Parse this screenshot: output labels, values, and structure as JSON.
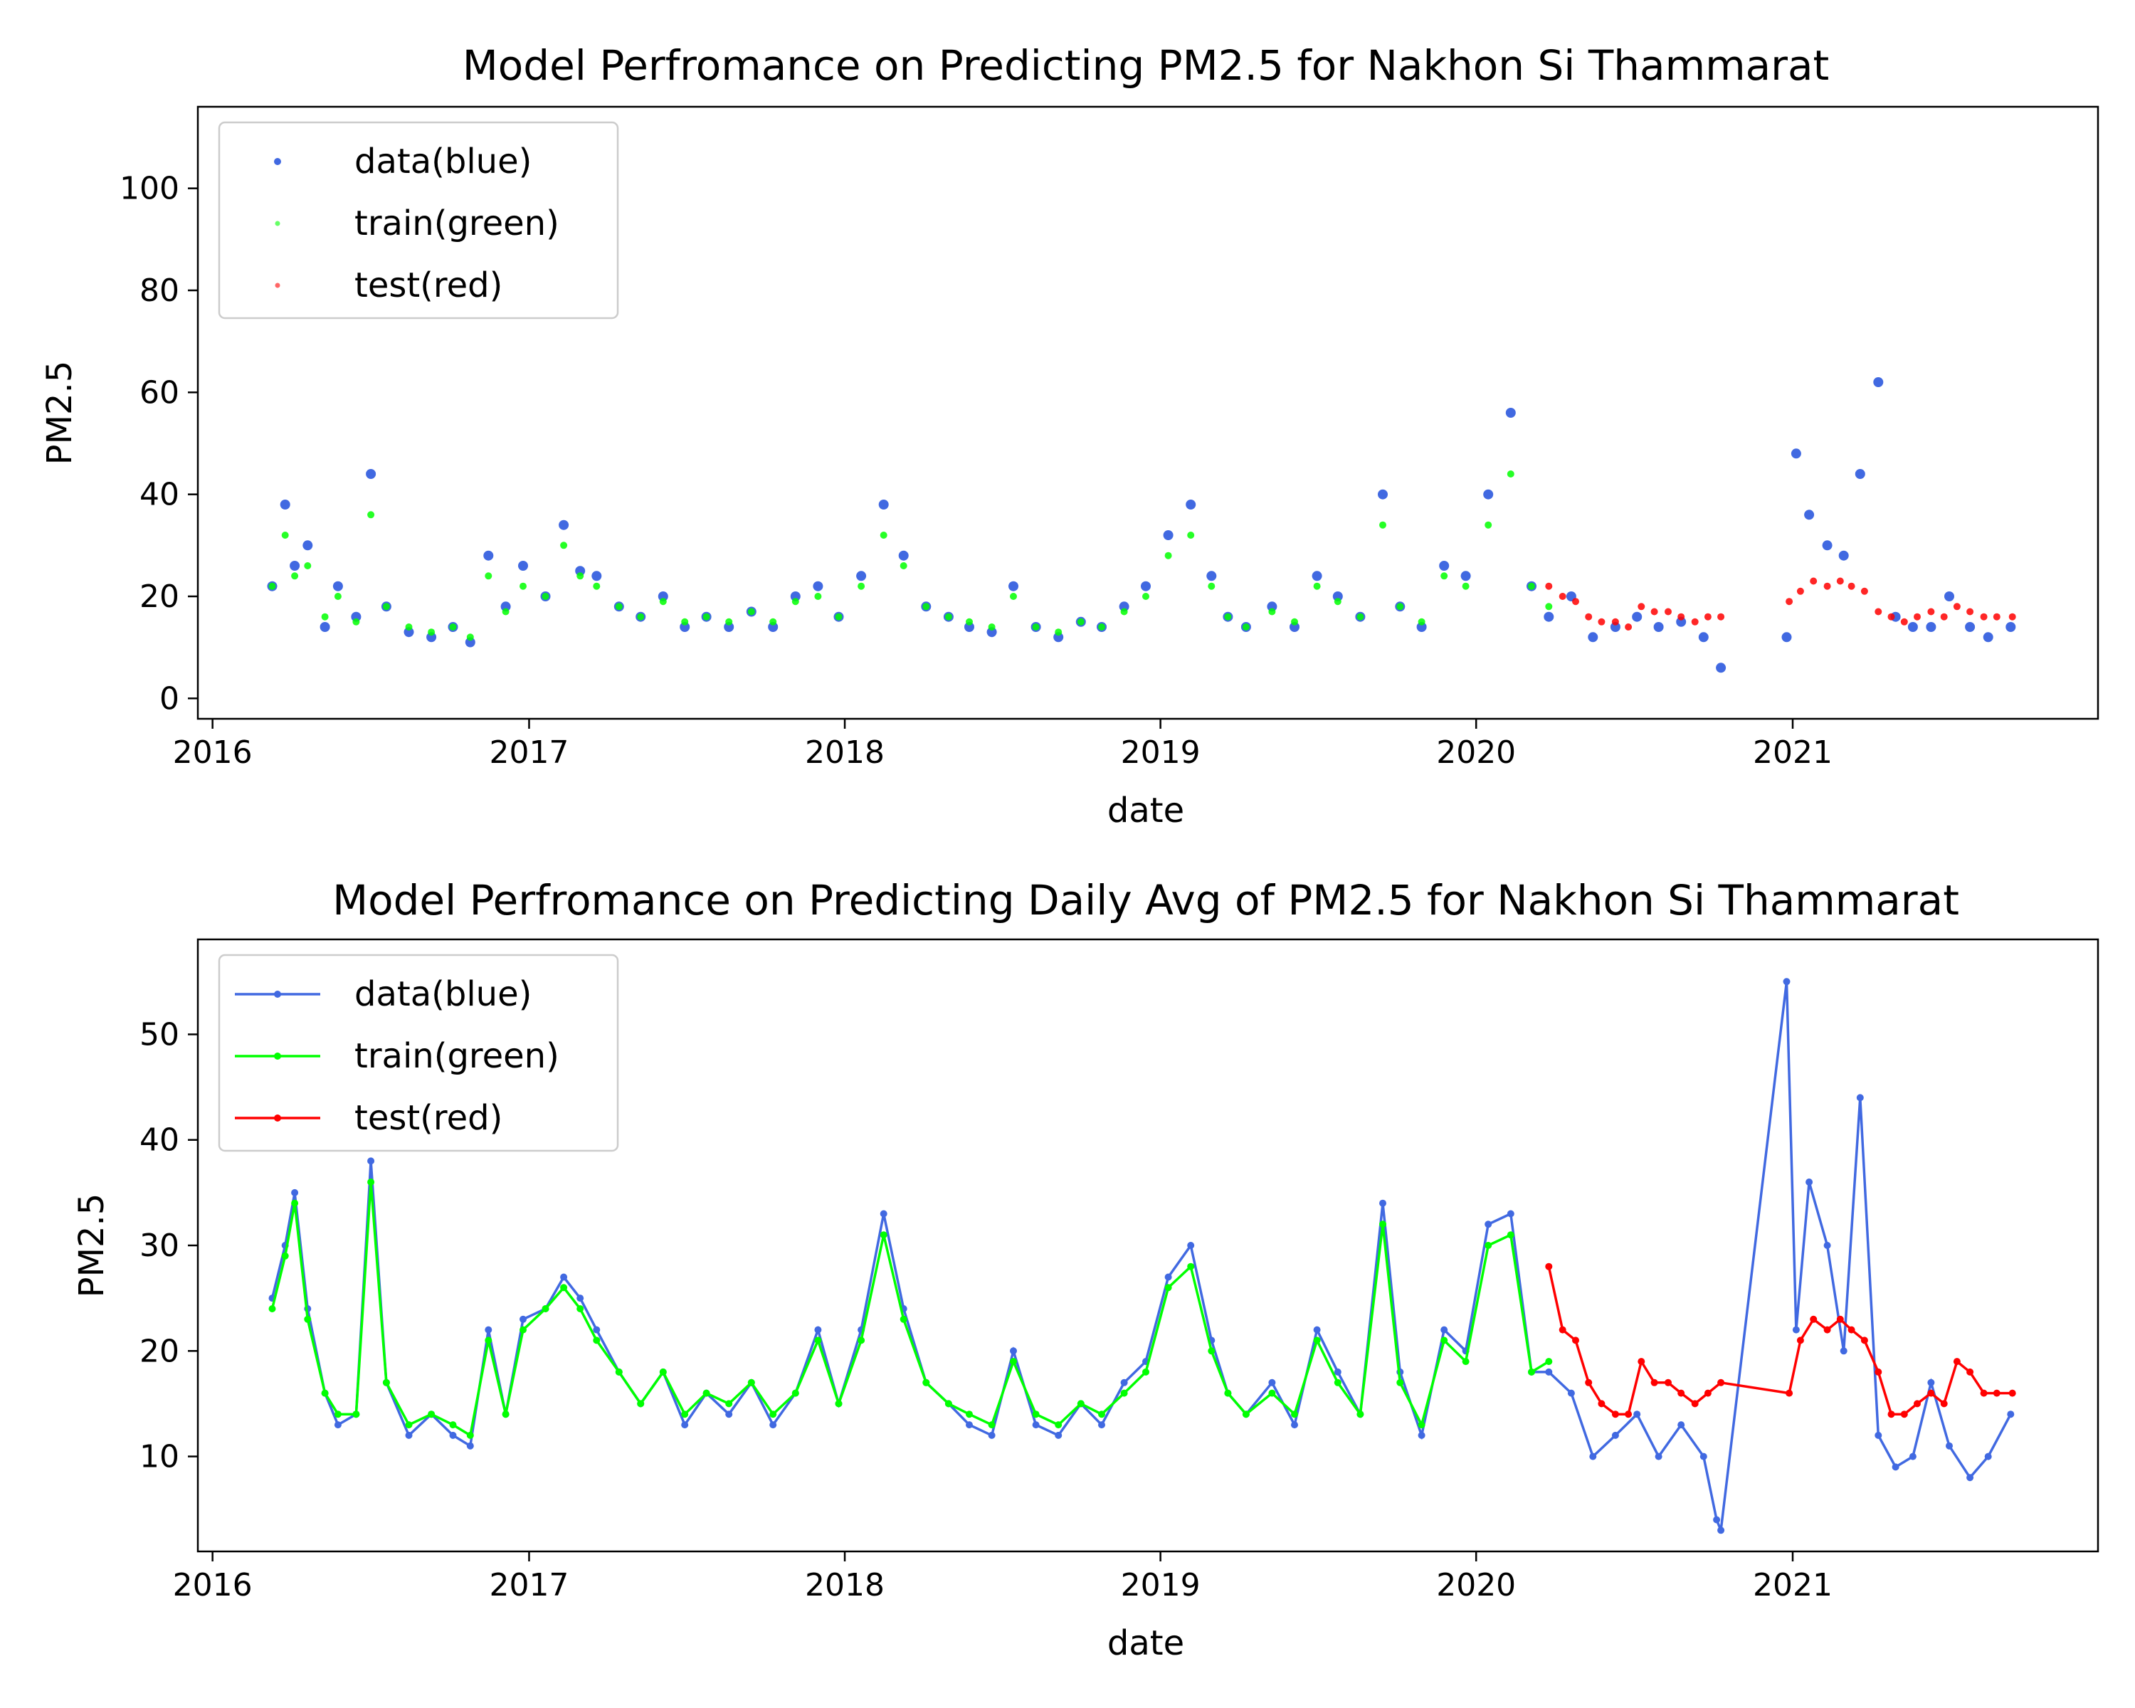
{
  "chart_data": [
    {
      "type": "scatter",
      "title": "Model Perfromance on Predicting PM2.5 for Nakhon Si Thammarat",
      "xlabel": "date",
      "ylabel": "PM2.5",
      "xlim": [
        "2015-12-15",
        "2021-12-20"
      ],
      "ylim": [
        -4,
        116
      ],
      "x_ticks": [
        "2016",
        "2017",
        "2018",
        "2019",
        "2020",
        "2021"
      ],
      "y_ticks": [
        0,
        20,
        40,
        60,
        80,
        100
      ],
      "legend": {
        "placement": "upper-left",
        "entries": [
          "data(blue)",
          "train(green)",
          "test(red)"
        ]
      },
      "colors": {
        "data": "#4169e1",
        "train": "#00ff00",
        "test": "#ff0000"
      },
      "series": [
        {
          "name": "data(blue)",
          "x": [
            "2016-03-10",
            "2016-03-25",
            "2016-04-05",
            "2016-04-20",
            "2016-05-10",
            "2016-05-25",
            "2016-06-15",
            "2016-07-02",
            "2016-07-20",
            "2016-08-15",
            "2016-09-10",
            "2016-10-05",
            "2016-10-25",
            "2016-11-15",
            "2016-12-05",
            "2016-12-25",
            "2017-01-20",
            "2017-02-10",
            "2017-03-01",
            "2017-03-20",
            "2017-04-15",
            "2017-05-10",
            "2017-06-05",
            "2017-06-30",
            "2017-07-25",
            "2017-08-20",
            "2017-09-15",
            "2017-10-10",
            "2017-11-05",
            "2017-12-01",
            "2017-12-25",
            "2018-01-20",
            "2018-02-15",
            "2018-03-10",
            "2018-04-05",
            "2018-05-01",
            "2018-05-25",
            "2018-06-20",
            "2018-07-15",
            "2018-08-10",
            "2018-09-05",
            "2018-10-01",
            "2018-10-25",
            "2018-11-20",
            "2018-12-15",
            "2019-01-10",
            "2019-02-05",
            "2019-03-01",
            "2019-03-20",
            "2019-04-10",
            "2019-05-10",
            "2019-06-05",
            "2019-07-01",
            "2019-07-25",
            "2019-08-20",
            "2019-09-15",
            "2019-10-05",
            "2019-10-30",
            "2019-11-25",
            "2019-12-20",
            "2020-01-15",
            "2020-02-10",
            "2020-03-05",
            "2020-03-25",
            "2020-04-20",
            "2020-05-15",
            "2020-06-10",
            "2020-07-05",
            "2020-07-30",
            "2020-08-25",
            "2020-09-20",
            "2020-10-10",
            "2020-12-25",
            "2021-01-05",
            "2021-01-20",
            "2021-02-10",
            "2021-03-01",
            "2021-03-20",
            "2021-04-10",
            "2021-04-30",
            "2021-05-20",
            "2021-06-10",
            "2021-07-01",
            "2021-07-25",
            "2021-08-15",
            "2021-09-10"
          ],
          "y": [
            22,
            38,
            26,
            30,
            14,
            22,
            16,
            44,
            18,
            13,
            12,
            14,
            11,
            28,
            18,
            26,
            20,
            34,
            25,
            24,
            18,
            16,
            20,
            14,
            16,
            14,
            17,
            14,
            20,
            22,
            16,
            24,
            38,
            28,
            18,
            16,
            14,
            13,
            22,
            14,
            12,
            15,
            14,
            18,
            22,
            32,
            38,
            24,
            16,
            14,
            18,
            14,
            24,
            20,
            16,
            40,
            18,
            14,
            26,
            24,
            40,
            56,
            22,
            16,
            20,
            12,
            14,
            16,
            14,
            15,
            12,
            6,
            12,
            48,
            36,
            30,
            28,
            44,
            62,
            16,
            14,
            14,
            20,
            14,
            12,
            14
          ]
        },
        {
          "name": "train(green)",
          "x": [
            "2016-03-10",
            "2016-03-25",
            "2016-04-05",
            "2016-04-20",
            "2016-05-10",
            "2016-05-25",
            "2016-06-15",
            "2016-07-02",
            "2016-07-20",
            "2016-08-15",
            "2016-09-10",
            "2016-10-05",
            "2016-10-25",
            "2016-11-15",
            "2016-12-05",
            "2016-12-25",
            "2017-01-20",
            "2017-02-10",
            "2017-03-01",
            "2017-03-20",
            "2017-04-15",
            "2017-05-10",
            "2017-06-05",
            "2017-06-30",
            "2017-07-25",
            "2017-08-20",
            "2017-09-15",
            "2017-10-10",
            "2017-11-05",
            "2017-12-01",
            "2017-12-25",
            "2018-01-20",
            "2018-02-15",
            "2018-03-10",
            "2018-04-05",
            "2018-05-01",
            "2018-05-25",
            "2018-06-20",
            "2018-07-15",
            "2018-08-10",
            "2018-09-05",
            "2018-10-01",
            "2018-10-25",
            "2018-11-20",
            "2018-12-15",
            "2019-01-10",
            "2019-02-05",
            "2019-03-01",
            "2019-03-20",
            "2019-04-10",
            "2019-05-10",
            "2019-06-05",
            "2019-07-01",
            "2019-07-25",
            "2019-08-20",
            "2019-09-15",
            "2019-10-05",
            "2019-10-30",
            "2019-11-25",
            "2019-12-20",
            "2020-01-15",
            "2020-02-10",
            "2020-03-05",
            "2020-03-25"
          ],
          "y": [
            22,
            32,
            24,
            26,
            16,
            20,
            15,
            36,
            18,
            14,
            13,
            14,
            12,
            24,
            17,
            22,
            20,
            30,
            24,
            22,
            18,
            16,
            19,
            15,
            16,
            15,
            17,
            15,
            19,
            20,
            16,
            22,
            32,
            26,
            18,
            16,
            15,
            14,
            20,
            14,
            13,
            15,
            14,
            17,
            20,
            28,
            32,
            22,
            16,
            14,
            17,
            15,
            22,
            19,
            16,
            34,
            18,
            15,
            24,
            22,
            34,
            44,
            22,
            18
          ]
        },
        {
          "name": "test(red)",
          "x": [
            "2020-03-25",
            "2020-04-10",
            "2020-04-25",
            "2020-05-10",
            "2020-05-25",
            "2020-06-10",
            "2020-06-25",
            "2020-07-10",
            "2020-07-25",
            "2020-08-10",
            "2020-08-25",
            "2020-09-10",
            "2020-09-25",
            "2020-10-10",
            "2020-12-28",
            "2021-01-10",
            "2021-01-25",
            "2021-02-10",
            "2021-02-25",
            "2021-03-10",
            "2021-03-25",
            "2021-04-10",
            "2021-04-25",
            "2021-05-10",
            "2021-05-25",
            "2021-06-10",
            "2021-06-25",
            "2021-07-10",
            "2021-07-25",
            "2021-08-10",
            "2021-08-25",
            "2021-09-12"
          ],
          "y": [
            22,
            20,
            19,
            16,
            15,
            15,
            14,
            18,
            17,
            17,
            16,
            15,
            16,
            16,
            19,
            21,
            23,
            22,
            23,
            22,
            21,
            17,
            16,
            15,
            16,
            17,
            16,
            18,
            17,
            16,
            16,
            16
          ]
        }
      ]
    },
    {
      "type": "line",
      "title": "Model Perfromance on Predicting Daily Avg of PM2.5 for Nakhon Si Thammarat",
      "xlabel": "date",
      "ylabel": "PM2.5",
      "xlim": [
        "2015-12-15",
        "2021-12-20"
      ],
      "ylim": [
        1,
        59
      ],
      "x_ticks": [
        "2016",
        "2017",
        "2018",
        "2019",
        "2020",
        "2021"
      ],
      "y_ticks": [
        10,
        20,
        30,
        40,
        50
      ],
      "legend": {
        "placement": "upper-left",
        "entries": [
          "data(blue)",
          "train(green)",
          "test(red)"
        ]
      },
      "colors": {
        "data": "#4169e1",
        "train": "#00ff00",
        "test": "#ff0000"
      },
      "series": [
        {
          "name": "data(blue)",
          "x": [
            "2016-03-10",
            "2016-03-25",
            "2016-04-05",
            "2016-04-20",
            "2016-05-10",
            "2016-05-25",
            "2016-06-15",
            "2016-07-02",
            "2016-07-20",
            "2016-08-15",
            "2016-09-10",
            "2016-10-05",
            "2016-10-25",
            "2016-11-15",
            "2016-12-05",
            "2016-12-25",
            "2017-01-20",
            "2017-02-10",
            "2017-03-01",
            "2017-03-20",
            "2017-04-15",
            "2017-05-10",
            "2017-06-05",
            "2017-06-30",
            "2017-07-25",
            "2017-08-20",
            "2017-09-15",
            "2017-10-10",
            "2017-11-05",
            "2017-12-01",
            "2017-12-25",
            "2018-01-20",
            "2018-02-15",
            "2018-03-10",
            "2018-04-05",
            "2018-05-01",
            "2018-05-25",
            "2018-06-20",
            "2018-07-15",
            "2018-08-10",
            "2018-09-05",
            "2018-10-01",
            "2018-10-25",
            "2018-11-20",
            "2018-12-15",
            "2019-01-10",
            "2019-02-05",
            "2019-03-01",
            "2019-03-20",
            "2019-04-10",
            "2019-05-10",
            "2019-06-05",
            "2019-07-01",
            "2019-07-25",
            "2019-08-20",
            "2019-09-15",
            "2019-10-05",
            "2019-10-30",
            "2019-11-25",
            "2019-12-20",
            "2020-01-15",
            "2020-02-10",
            "2020-03-05",
            "2020-03-25",
            "2020-04-20",
            "2020-05-15",
            "2020-06-10",
            "2020-07-05",
            "2020-07-30",
            "2020-08-25",
            "2020-09-20",
            "2020-10-05",
            "2020-10-10",
            "2020-12-25",
            "2021-01-05",
            "2021-01-20",
            "2021-02-10",
            "2021-03-01",
            "2021-03-20",
            "2021-04-10",
            "2021-04-30",
            "2021-05-20",
            "2021-06-10",
            "2021-07-01",
            "2021-07-25",
            "2021-08-15",
            "2021-09-10"
          ],
          "y": [
            25,
            30,
            35,
            24,
            16,
            13,
            14,
            38,
            17,
            12,
            14,
            12,
            11,
            22,
            14,
            23,
            24,
            27,
            25,
            22,
            18,
            15,
            18,
            13,
            16,
            14,
            17,
            13,
            16,
            22,
            15,
            22,
            33,
            24,
            17,
            15,
            13,
            12,
            20,
            13,
            12,
            15,
            13,
            17,
            19,
            27,
            30,
            21,
            16,
            14,
            17,
            13,
            22,
            18,
            14,
            34,
            18,
            12,
            22,
            20,
            32,
            33,
            18,
            18,
            16,
            10,
            12,
            14,
            10,
            13,
            10,
            4,
            3,
            55,
            22,
            36,
            30,
            20,
            44,
            12,
            9,
            10,
            17,
            11,
            8,
            10,
            14
          ]
        },
        {
          "name": "train(green)",
          "x": [
            "2016-03-10",
            "2016-03-25",
            "2016-04-05",
            "2016-04-20",
            "2016-05-10",
            "2016-05-25",
            "2016-06-15",
            "2016-07-02",
            "2016-07-20",
            "2016-08-15",
            "2016-09-10",
            "2016-10-05",
            "2016-10-25",
            "2016-11-15",
            "2016-12-05",
            "2016-12-25",
            "2017-01-20",
            "2017-02-10",
            "2017-03-01",
            "2017-03-20",
            "2017-04-15",
            "2017-05-10",
            "2017-06-05",
            "2017-06-30",
            "2017-07-25",
            "2017-08-20",
            "2017-09-15",
            "2017-10-10",
            "2017-11-05",
            "2017-12-01",
            "2017-12-25",
            "2018-01-20",
            "2018-02-15",
            "2018-03-10",
            "2018-04-05",
            "2018-05-01",
            "2018-05-25",
            "2018-06-20",
            "2018-07-15",
            "2018-08-10",
            "2018-09-05",
            "2018-10-01",
            "2018-10-25",
            "2018-11-20",
            "2018-12-15",
            "2019-01-10",
            "2019-02-05",
            "2019-03-01",
            "2019-03-20",
            "2019-04-10",
            "2019-05-10",
            "2019-06-05",
            "2019-07-01",
            "2019-07-25",
            "2019-08-20",
            "2019-09-15",
            "2019-10-05",
            "2019-10-30",
            "2019-11-25",
            "2019-12-20",
            "2020-01-15",
            "2020-02-10",
            "2020-03-05",
            "2020-03-25"
          ],
          "y": [
            24,
            29,
            34,
            23,
            16,
            14,
            14,
            36,
            17,
            13,
            14,
            13,
            12,
            21,
            14,
            22,
            24,
            26,
            24,
            21,
            18,
            15,
            18,
            14,
            16,
            15,
            17,
            14,
            16,
            21,
            15,
            21,
            31,
            23,
            17,
            15,
            14,
            13,
            19,
            14,
            13,
            15,
            14,
            16,
            18,
            26,
            28,
            20,
            16,
            14,
            16,
            14,
            21,
            17,
            14,
            32,
            17,
            13,
            21,
            19,
            30,
            31,
            18,
            19
          ]
        },
        {
          "name": "test(red)",
          "x": [
            "2020-03-25",
            "2020-04-10",
            "2020-04-25",
            "2020-05-10",
            "2020-05-25",
            "2020-06-10",
            "2020-06-25",
            "2020-07-10",
            "2020-07-25",
            "2020-08-10",
            "2020-08-25",
            "2020-09-10",
            "2020-09-25",
            "2020-10-10",
            "2020-12-28",
            "2021-01-10",
            "2021-01-25",
            "2021-02-10",
            "2021-02-25",
            "2021-03-10",
            "2021-03-25",
            "2021-04-10",
            "2021-04-25",
            "2021-05-10",
            "2021-05-25",
            "2021-06-10",
            "2021-06-25",
            "2021-07-10",
            "2021-07-25",
            "2021-08-10",
            "2021-08-25",
            "2021-09-12"
          ],
          "y": [
            28,
            22,
            21,
            17,
            15,
            14,
            14,
            19,
            17,
            17,
            16,
            15,
            16,
            17,
            16,
            21,
            23,
            22,
            23,
            22,
            21,
            18,
            14,
            14,
            15,
            16,
            15,
            19,
            18,
            16,
            16,
            16
          ]
        }
      ]
    }
  ]
}
